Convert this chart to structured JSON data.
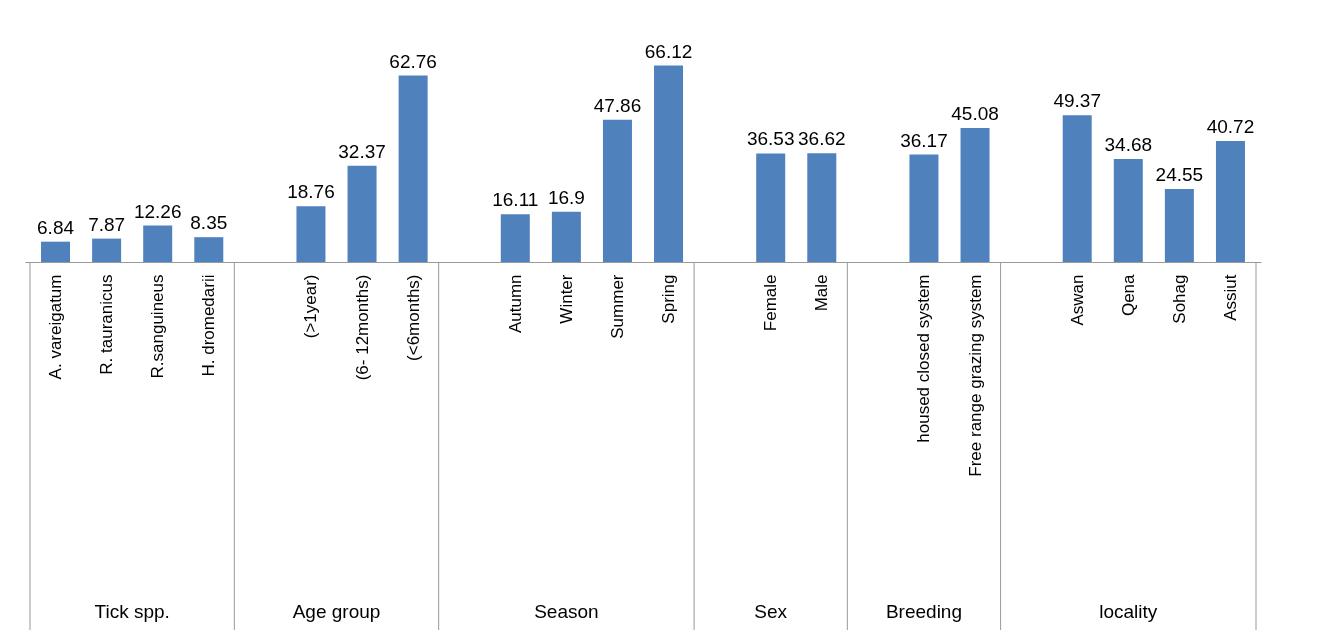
{
  "chart_data": {
    "type": "bar",
    "categories": [
      "A. vareigatum",
      "R. tauranicus",
      "R.sanguineus",
      "H. dromedarii",
      null,
      "(>1year)",
      "(6- 12months)",
      "(<6months)",
      null,
      "Autumn",
      "Winter",
      "Summer",
      "Spring",
      null,
      "Female",
      "Male",
      null,
      "housed closed system",
      "Free range grazing system",
      null,
      "Aswan",
      "Qena",
      "Sohag",
      "Assiut"
    ],
    "values": [
      6.84,
      7.87,
      12.26,
      8.35,
      null,
      18.76,
      32.37,
      62.76,
      null,
      16.11,
      16.9,
      47.86,
      66.12,
      null,
      36.53,
      36.62,
      null,
      36.17,
      45.08,
      null,
      49.37,
      34.68,
      24.55,
      40.72
    ],
    "color": "#4f81bd",
    "data_labels": true,
    "annotations": [
      "Tick spp.",
      "Age group",
      "Season",
      "Sex",
      "Breeding",
      "locality"
    ]
  }
}
